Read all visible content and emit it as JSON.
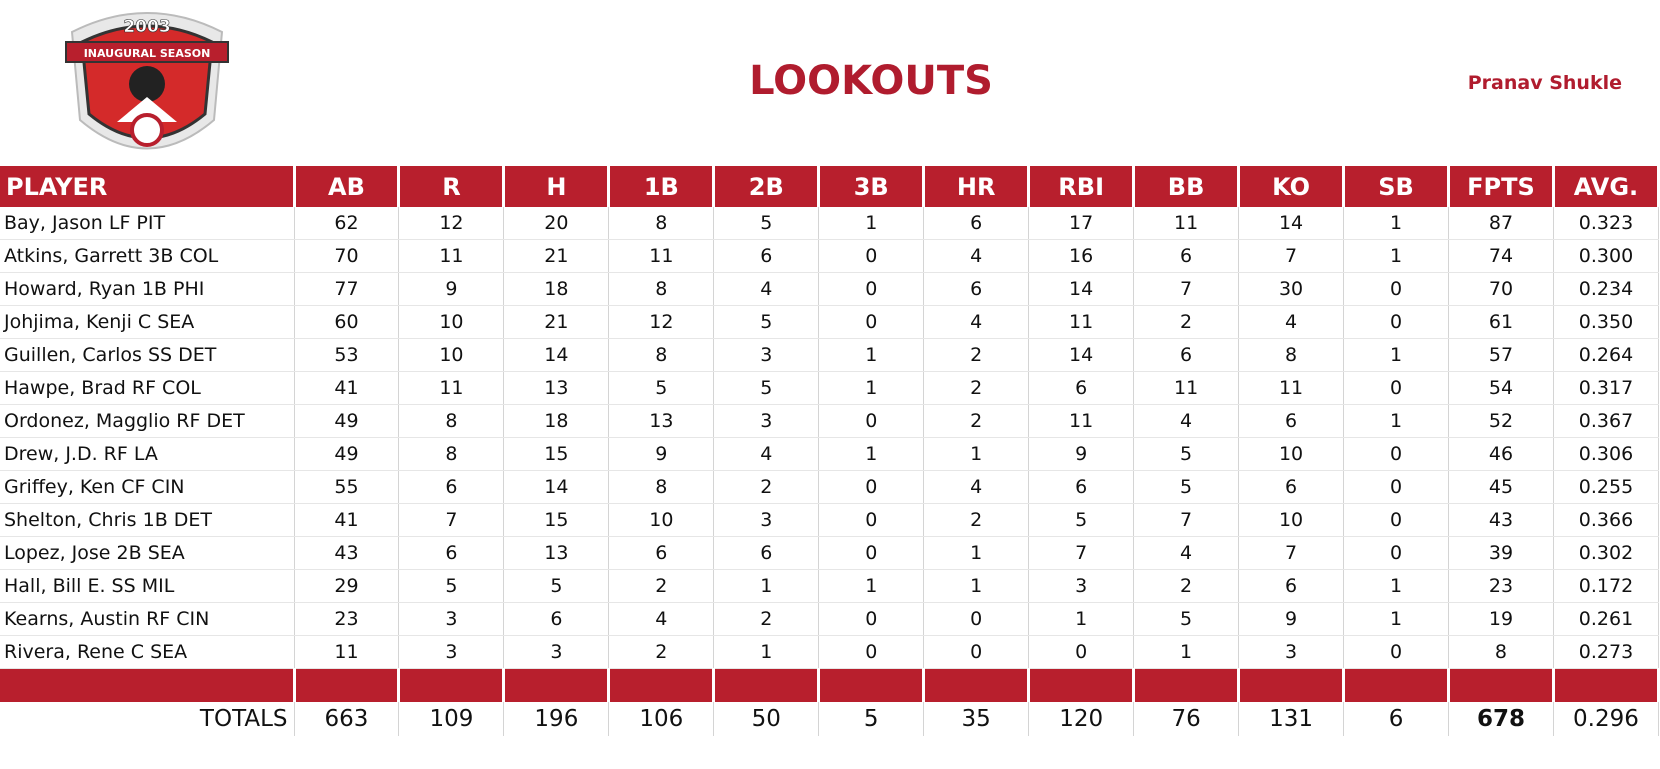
{
  "header": {
    "logo_year": "2003",
    "logo_text": "INAUGURAL SEASON",
    "title": "LOOKOUTS",
    "owner": "Pranav Shukle"
  },
  "table": {
    "columns": [
      "PLAYER",
      "AB",
      "R",
      "H",
      "1B",
      "2B",
      "3B",
      "HR",
      "RBI",
      "BB",
      "KO",
      "SB",
      "FPTS",
      "AVG."
    ],
    "rows": [
      [
        "Bay, Jason LF PIT",
        62,
        12,
        20,
        8,
        5,
        1,
        6,
        17,
        11,
        14,
        1,
        87,
        "0.323"
      ],
      [
        "Atkins, Garrett 3B COL",
        70,
        11,
        21,
        11,
        6,
        0,
        4,
        16,
        6,
        7,
        1,
        74,
        "0.300"
      ],
      [
        "Howard, Ryan 1B PHI",
        77,
        9,
        18,
        8,
        4,
        0,
        6,
        14,
        7,
        30,
        0,
        70,
        "0.234"
      ],
      [
        "Johjima, Kenji C SEA",
        60,
        10,
        21,
        12,
        5,
        0,
        4,
        11,
        2,
        4,
        0,
        61,
        "0.350"
      ],
      [
        "Guillen, Carlos SS DET",
        53,
        10,
        14,
        8,
        3,
        1,
        2,
        14,
        6,
        8,
        1,
        57,
        "0.264"
      ],
      [
        "Hawpe, Brad RF COL",
        41,
        11,
        13,
        5,
        5,
        1,
        2,
        6,
        11,
        11,
        0,
        54,
        "0.317"
      ],
      [
        "Ordonez, Magglio RF DET",
        49,
        8,
        18,
        13,
        3,
        0,
        2,
        11,
        4,
        6,
        1,
        52,
        "0.367"
      ],
      [
        "Drew, J.D. RF LA",
        49,
        8,
        15,
        9,
        4,
        1,
        1,
        9,
        5,
        10,
        0,
        46,
        "0.306"
      ],
      [
        "Griffey, Ken CF CIN",
        55,
        6,
        14,
        8,
        2,
        0,
        4,
        6,
        5,
        6,
        0,
        45,
        "0.255"
      ],
      [
        "Shelton, Chris 1B DET",
        41,
        7,
        15,
        10,
        3,
        0,
        2,
        5,
        7,
        10,
        0,
        43,
        "0.366"
      ],
      [
        "Lopez, Jose 2B SEA",
        43,
        6,
        13,
        6,
        6,
        0,
        1,
        7,
        4,
        7,
        0,
        39,
        "0.302"
      ],
      [
        "Hall, Bill E. SS MIL",
        29,
        5,
        5,
        2,
        1,
        1,
        1,
        3,
        2,
        6,
        1,
        23,
        "0.172"
      ],
      [
        "Kearns, Austin RF CIN",
        23,
        3,
        6,
        4,
        2,
        0,
        0,
        1,
        5,
        9,
        1,
        19,
        "0.261"
      ],
      [
        "Rivera, Rene C SEA",
        11,
        3,
        3,
        2,
        1,
        0,
        0,
        0,
        1,
        3,
        0,
        8,
        "0.273"
      ]
    ],
    "totals": [
      "TOTALS",
      663,
      109,
      196,
      106,
      50,
      5,
      35,
      120,
      76,
      131,
      6,
      678,
      "0.296"
    ]
  }
}
